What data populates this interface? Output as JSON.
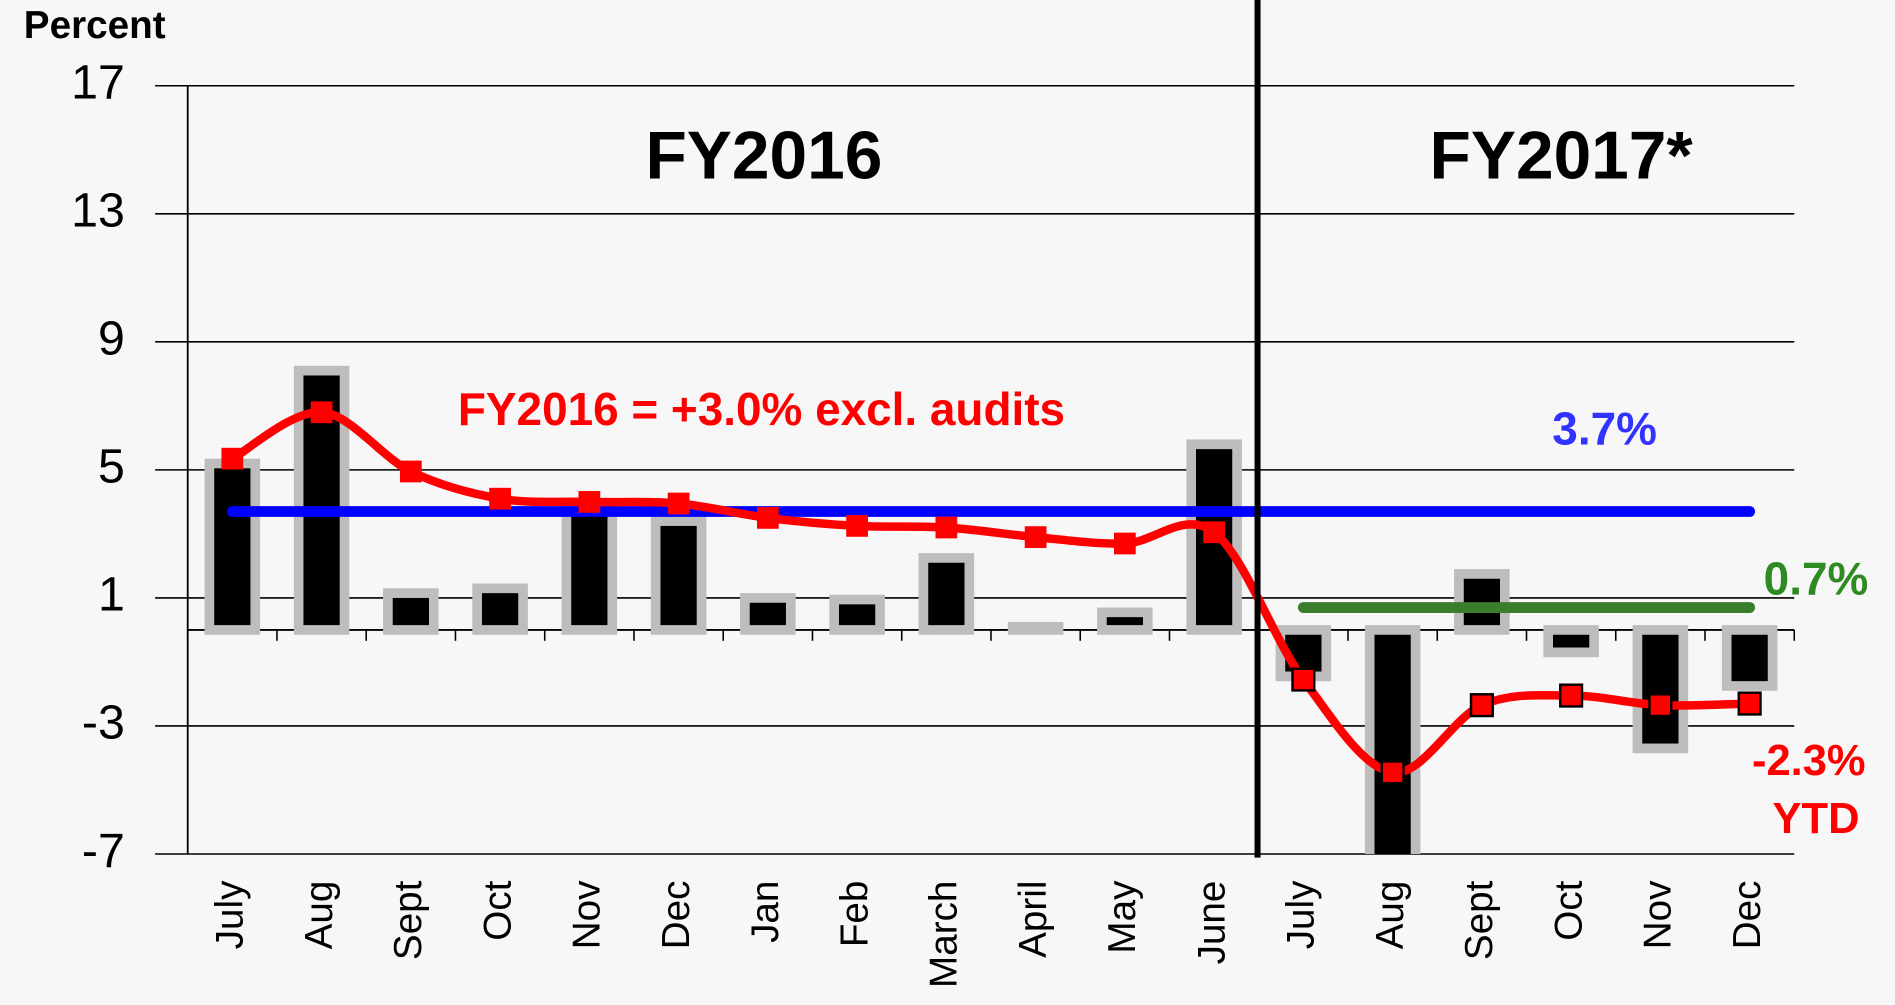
{
  "chart_data": {
    "type": "bar",
    "y_label": "Percent",
    "categories": [
      "July",
      "Aug",
      "Sept",
      "Oct",
      "Nov",
      "Dec",
      "Jan",
      "Feb",
      "March",
      "April",
      "May",
      "June",
      "July",
      "Aug",
      "Sept",
      "Oct",
      "Nov",
      "Dec"
    ],
    "series": [
      {
        "type": "bar",
        "color": "#000000",
        "values": [
          5.2,
          8.1,
          1.15,
          1.3,
          3.8,
          3.4,
          1.0,
          0.95,
          2.25,
          0.1,
          0.55,
          5.8,
          -1.45,
          -7.5,
          1.75,
          -0.7,
          -3.7,
          -1.75
        ]
      },
      {
        "type": "line",
        "color": "#ff0000",
        "values": [
          5.35,
          6.8,
          4.95,
          4.1,
          4.0,
          3.95,
          3.5,
          3.25,
          3.2,
          2.9,
          2.7,
          3.05,
          -1.55,
          -4.45,
          -2.35,
          -2.05,
          -2.35,
          -2.3
        ]
      },
      {
        "type": "line",
        "color": "#0000ff",
        "values": [
          3.7,
          3.7,
          3.7,
          3.7,
          3.7,
          3.7,
          3.7,
          3.7,
          3.7,
          3.7,
          3.7,
          3.7,
          3.7,
          3.7,
          3.7,
          3.7,
          3.7,
          3.7
        ]
      },
      {
        "type": "line",
        "color": "#3a7d2a",
        "values": [
          null,
          null,
          null,
          null,
          null,
          null,
          null,
          null,
          null,
          null,
          null,
          null,
          0.7,
          0.7,
          0.7,
          0.7,
          0.7,
          0.7
        ]
      }
    ],
    "ylim": [
      -7,
      17
    ],
    "yticks": [
      -7,
      -3,
      1,
      5,
      9,
      13,
      17
    ],
    "grid": true,
    "annotations": [
      "FY2016",
      "FY2017*",
      "FY2016 = +3.0% excl. audits",
      "3.7%",
      "0.7%",
      "-2.3%",
      "YTD"
    ]
  }
}
